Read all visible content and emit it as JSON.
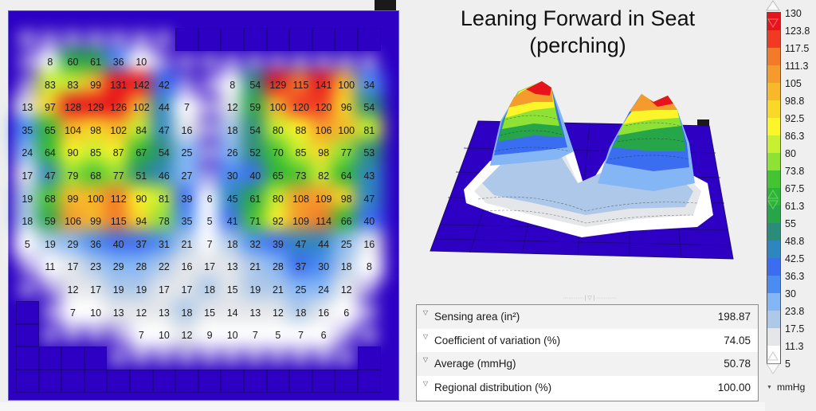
{
  "title": {
    "line1": "Leaning Forward in Seat",
    "line2": "(perching)"
  },
  "stats": {
    "rows": [
      {
        "label": "Sensing area (in²)",
        "value": "198.87",
        "icon": "expand-triangle-icon"
      },
      {
        "label": "Coefficient of variation (%)",
        "value": "74.05",
        "icon": "expand-triangle-icon"
      },
      {
        "label": "Average (mmHg)",
        "value": "50.78",
        "icon": "expand-triangle-icon"
      },
      {
        "label": "Regional distribution (%)",
        "value": "100.00",
        "icon": "expand-triangle-icon"
      }
    ],
    "splitter": "··········· | ▽ | ···········"
  },
  "legend": {
    "unit": "mmHg",
    "unit_icon": "▼",
    "labels": [
      "130",
      "123.8",
      "117.5",
      "111.3",
      "105",
      "98.8",
      "92.5",
      "86.3",
      "80",
      "73.8",
      "67.5",
      "61.3",
      "55",
      "48.8",
      "42.5",
      "36.3",
      "30",
      "23.8",
      "17.5",
      "11.3",
      "5"
    ],
    "colors": [
      "#e8141c",
      "#f03a24",
      "#f27a28",
      "#f59a2c",
      "#f7b82a",
      "#f9d828",
      "#fbf52a",
      "#c8ef30",
      "#8ee236",
      "#44c432",
      "#2bb534",
      "#27a649",
      "#2c8c7a",
      "#2e86c1",
      "#3b6df0",
      "#4a8cf2",
      "#84b6f5",
      "#adc8e8",
      "#e4e6ea",
      "#ffffff"
    ]
  },
  "colors": {
    "background_mat": "#2d00c4",
    "grid_line": "#1b0a6a",
    "panel_bg": "#efefef"
  },
  "chart_data": [
    {
      "type": "heatmap",
      "title": "Pressure map (mmHg) — 2D sensor grid",
      "grid": {
        "cols": 16,
        "rows": 16
      },
      "unit": "mmHg",
      "cells": [
        {
          "r": 1,
          "c": 1,
          "v": 8
        },
        {
          "r": 1,
          "c": 2,
          "v": 60
        },
        {
          "r": 1,
          "c": 3,
          "v": 61
        },
        {
          "r": 1,
          "c": 4,
          "v": 36
        },
        {
          "r": 1,
          "c": 5,
          "v": 10
        },
        {
          "r": 2,
          "c": 1,
          "v": 83
        },
        {
          "r": 2,
          "c": 2,
          "v": 83
        },
        {
          "r": 2,
          "c": 3,
          "v": 99
        },
        {
          "r": 2,
          "c": 4,
          "v": 131
        },
        {
          "r": 2,
          "c": 5,
          "v": 142
        },
        {
          "r": 2,
          "c": 6,
          "v": 42
        },
        {
          "r": 2,
          "c": 9,
          "v": 8
        },
        {
          "r": 2,
          "c": 10,
          "v": 54
        },
        {
          "r": 2,
          "c": 11,
          "v": 129
        },
        {
          "r": 2,
          "c": 12,
          "v": 115
        },
        {
          "r": 2,
          "c": 13,
          "v": 141
        },
        {
          "r": 2,
          "c": 14,
          "v": 100
        },
        {
          "r": 2,
          "c": 15,
          "v": 34
        },
        {
          "r": 3,
          "c": 0,
          "v": 13
        },
        {
          "r": 3,
          "c": 1,
          "v": 97
        },
        {
          "r": 3,
          "c": 2,
          "v": 128
        },
        {
          "r": 3,
          "c": 3,
          "v": 129
        },
        {
          "r": 3,
          "c": 4,
          "v": 126
        },
        {
          "r": 3,
          "c": 5,
          "v": 102
        },
        {
          "r": 3,
          "c": 6,
          "v": 44
        },
        {
          "r": 3,
          "c": 7,
          "v": 7
        },
        {
          "r": 3,
          "c": 9,
          "v": 12
        },
        {
          "r": 3,
          "c": 10,
          "v": 59
        },
        {
          "r": 3,
          "c": 11,
          "v": 100
        },
        {
          "r": 3,
          "c": 12,
          "v": 120
        },
        {
          "r": 3,
          "c": 13,
          "v": 120
        },
        {
          "r": 3,
          "c": 14,
          "v": 96
        },
        {
          "r": 3,
          "c": 15,
          "v": 54
        },
        {
          "r": 4,
          "c": 0,
          "v": 35
        },
        {
          "r": 4,
          "c": 1,
          "v": 65
        },
        {
          "r": 4,
          "c": 2,
          "v": 104
        },
        {
          "r": 4,
          "c": 3,
          "v": 98
        },
        {
          "r": 4,
          "c": 4,
          "v": 102
        },
        {
          "r": 4,
          "c": 5,
          "v": 84
        },
        {
          "r": 4,
          "c": 6,
          "v": 47
        },
        {
          "r": 4,
          "c": 7,
          "v": 16
        },
        {
          "r": 4,
          "c": 9,
          "v": 18
        },
        {
          "r": 4,
          "c": 10,
          "v": 54
        },
        {
          "r": 4,
          "c": 11,
          "v": 80
        },
        {
          "r": 4,
          "c": 12,
          "v": 88
        },
        {
          "r": 4,
          "c": 13,
          "v": 106
        },
        {
          "r": 4,
          "c": 14,
          "v": 100
        },
        {
          "r": 4,
          "c": 15,
          "v": 81
        },
        {
          "r": 5,
          "c": 0,
          "v": 24
        },
        {
          "r": 5,
          "c": 1,
          "v": 64
        },
        {
          "r": 5,
          "c": 2,
          "v": 90
        },
        {
          "r": 5,
          "c": 3,
          "v": 85
        },
        {
          "r": 5,
          "c": 4,
          "v": 87
        },
        {
          "r": 5,
          "c": 5,
          "v": 67
        },
        {
          "r": 5,
          "c": 6,
          "v": 54
        },
        {
          "r": 5,
          "c": 7,
          "v": 25
        },
        {
          "r": 5,
          "c": 9,
          "v": 26
        },
        {
          "r": 5,
          "c": 10,
          "v": 52
        },
        {
          "r": 5,
          "c": 11,
          "v": 70
        },
        {
          "r": 5,
          "c": 12,
          "v": 85
        },
        {
          "r": 5,
          "c": 13,
          "v": 98
        },
        {
          "r": 5,
          "c": 14,
          "v": 77
        },
        {
          "r": 5,
          "c": 15,
          "v": 53
        },
        {
          "r": 6,
          "c": 0,
          "v": 17
        },
        {
          "r": 6,
          "c": 1,
          "v": 47
        },
        {
          "r": 6,
          "c": 2,
          "v": 79
        },
        {
          "r": 6,
          "c": 3,
          "v": 68
        },
        {
          "r": 6,
          "c": 4,
          "v": 77
        },
        {
          "r": 6,
          "c": 5,
          "v": 51
        },
        {
          "r": 6,
          "c": 6,
          "v": 46
        },
        {
          "r": 6,
          "c": 7,
          "v": 27
        },
        {
          "r": 6,
          "c": 9,
          "v": 30
        },
        {
          "r": 6,
          "c": 10,
          "v": 40
        },
        {
          "r": 6,
          "c": 11,
          "v": 65
        },
        {
          "r": 6,
          "c": 12,
          "v": 73
        },
        {
          "r": 6,
          "c": 13,
          "v": 82
        },
        {
          "r": 6,
          "c": 14,
          "v": 64
        },
        {
          "r": 6,
          "c": 15,
          "v": 43
        },
        {
          "r": 7,
          "c": 0,
          "v": 19
        },
        {
          "r": 7,
          "c": 1,
          "v": 68
        },
        {
          "r": 7,
          "c": 2,
          "v": 99
        },
        {
          "r": 7,
          "c": 3,
          "v": 100
        },
        {
          "r": 7,
          "c": 4,
          "v": 112
        },
        {
          "r": 7,
          "c": 5,
          "v": 90
        },
        {
          "r": 7,
          "c": 6,
          "v": 81
        },
        {
          "r": 7,
          "c": 7,
          "v": 39
        },
        {
          "r": 7,
          "c": 8,
          "v": 6
        },
        {
          "r": 7,
          "c": 9,
          "v": 45
        },
        {
          "r": 7,
          "c": 10,
          "v": 61
        },
        {
          "r": 7,
          "c": 11,
          "v": 80
        },
        {
          "r": 7,
          "c": 12,
          "v": 108
        },
        {
          "r": 7,
          "c": 13,
          "v": 109
        },
        {
          "r": 7,
          "c": 14,
          "v": 98
        },
        {
          "r": 7,
          "c": 15,
          "v": 47
        },
        {
          "r": 8,
          "c": 0,
          "v": 18
        },
        {
          "r": 8,
          "c": 1,
          "v": 59
        },
        {
          "r": 8,
          "c": 2,
          "v": 106
        },
        {
          "r": 8,
          "c": 3,
          "v": 99
        },
        {
          "r": 8,
          "c": 4,
          "v": 115
        },
        {
          "r": 8,
          "c": 5,
          "v": 94
        },
        {
          "r": 8,
          "c": 6,
          "v": 78
        },
        {
          "r": 8,
          "c": 7,
          "v": 35
        },
        {
          "r": 8,
          "c": 8,
          "v": 5
        },
        {
          "r": 8,
          "c": 9,
          "v": 41
        },
        {
          "r": 8,
          "c": 10,
          "v": 71
        },
        {
          "r": 8,
          "c": 11,
          "v": 92
        },
        {
          "r": 8,
          "c": 12,
          "v": 109
        },
        {
          "r": 8,
          "c": 13,
          "v": 114
        },
        {
          "r": 8,
          "c": 14,
          "v": 66
        },
        {
          "r": 8,
          "c": 15,
          "v": 40
        },
        {
          "r": 9,
          "c": 0,
          "v": 5
        },
        {
          "r": 9,
          "c": 1,
          "v": 19
        },
        {
          "r": 9,
          "c": 2,
          "v": 29
        },
        {
          "r": 9,
          "c": 3,
          "v": 36
        },
        {
          "r": 9,
          "c": 4,
          "v": 40
        },
        {
          "r": 9,
          "c": 5,
          "v": 37
        },
        {
          "r": 9,
          "c": 6,
          "v": 31
        },
        {
          "r": 9,
          "c": 7,
          "v": 21
        },
        {
          "r": 9,
          "c": 8,
          "v": 7
        },
        {
          "r": 9,
          "c": 9,
          "v": 18
        },
        {
          "r": 9,
          "c": 10,
          "v": 32
        },
        {
          "r": 9,
          "c": 11,
          "v": 39
        },
        {
          "r": 9,
          "c": 12,
          "v": 47
        },
        {
          "r": 9,
          "c": 13,
          "v": 44
        },
        {
          "r": 9,
          "c": 14,
          "v": 25
        },
        {
          "r": 9,
          "c": 15,
          "v": 16
        },
        {
          "r": 10,
          "c": 1,
          "v": 11
        },
        {
          "r": 10,
          "c": 2,
          "v": 17
        },
        {
          "r": 10,
          "c": 3,
          "v": 23
        },
        {
          "r": 10,
          "c": 4,
          "v": 29
        },
        {
          "r": 10,
          "c": 5,
          "v": 28
        },
        {
          "r": 10,
          "c": 6,
          "v": 22
        },
        {
          "r": 10,
          "c": 7,
          "v": 16
        },
        {
          "r": 10,
          "c": 8,
          "v": 17
        },
        {
          "r": 10,
          "c": 9,
          "v": 13
        },
        {
          "r": 10,
          "c": 10,
          "v": 21
        },
        {
          "r": 10,
          "c": 11,
          "v": 28
        },
        {
          "r": 10,
          "c": 12,
          "v": 37
        },
        {
          "r": 10,
          "c": 13,
          "v": 30
        },
        {
          "r": 10,
          "c": 14,
          "v": 18
        },
        {
          "r": 10,
          "c": 15,
          "v": 8
        },
        {
          "r": 11,
          "c": 2,
          "v": 12
        },
        {
          "r": 11,
          "c": 3,
          "v": 17
        },
        {
          "r": 11,
          "c": 4,
          "v": 19
        },
        {
          "r": 11,
          "c": 5,
          "v": 19
        },
        {
          "r": 11,
          "c": 6,
          "v": 17
        },
        {
          "r": 11,
          "c": 7,
          "v": 17
        },
        {
          "r": 11,
          "c": 8,
          "v": 18
        },
        {
          "r": 11,
          "c": 9,
          "v": 15
        },
        {
          "r": 11,
          "c": 10,
          "v": 19
        },
        {
          "r": 11,
          "c": 11,
          "v": 21
        },
        {
          "r": 11,
          "c": 12,
          "v": 25
        },
        {
          "r": 11,
          "c": 13,
          "v": 24
        },
        {
          "r": 11,
          "c": 14,
          "v": 12
        },
        {
          "r": 12,
          "c": 2,
          "v": 7
        },
        {
          "r": 12,
          "c": 3,
          "v": 10
        },
        {
          "r": 12,
          "c": 4,
          "v": 13
        },
        {
          "r": 12,
          "c": 5,
          "v": 12
        },
        {
          "r": 12,
          "c": 6,
          "v": 13
        },
        {
          "r": 12,
          "c": 7,
          "v": 18
        },
        {
          "r": 12,
          "c": 8,
          "v": 15
        },
        {
          "r": 12,
          "c": 9,
          "v": 14
        },
        {
          "r": 12,
          "c": 10,
          "v": 13
        },
        {
          "r": 12,
          "c": 11,
          "v": 12
        },
        {
          "r": 12,
          "c": 12,
          "v": 18
        },
        {
          "r": 12,
          "c": 13,
          "v": 16
        },
        {
          "r": 12,
          "c": 14,
          "v": 6
        },
        {
          "r": 13,
          "c": 5,
          "v": 7
        },
        {
          "r": 13,
          "c": 6,
          "v": 10
        },
        {
          "r": 13,
          "c": 7,
          "v": 12
        },
        {
          "r": 13,
          "c": 8,
          "v": 9
        },
        {
          "r": 13,
          "c": 9,
          "v": 10
        },
        {
          "r": 13,
          "c": 10,
          "v": 7
        },
        {
          "r": 13,
          "c": 11,
          "v": 5
        },
        {
          "r": 13,
          "c": 12,
          "v": 7
        },
        {
          "r": 13,
          "c": 13,
          "v": 6
        }
      ],
      "scale": {
        "min": 5,
        "max": 130,
        "ticks": [
          130,
          123.8,
          117.5,
          111.3,
          105,
          98.8,
          92.5,
          86.3,
          80,
          73.8,
          67.5,
          61.3,
          55,
          48.8,
          42.5,
          36.3,
          30,
          23.8,
          17.5,
          11.3,
          5
        ]
      }
    },
    {
      "type": "surface3d",
      "title": "Leaning Forward in Seat (perching)",
      "description": "3D surface of same pressure grid showing two peaks (left ~142 mmHg, right ~141 mmHg)"
    }
  ]
}
